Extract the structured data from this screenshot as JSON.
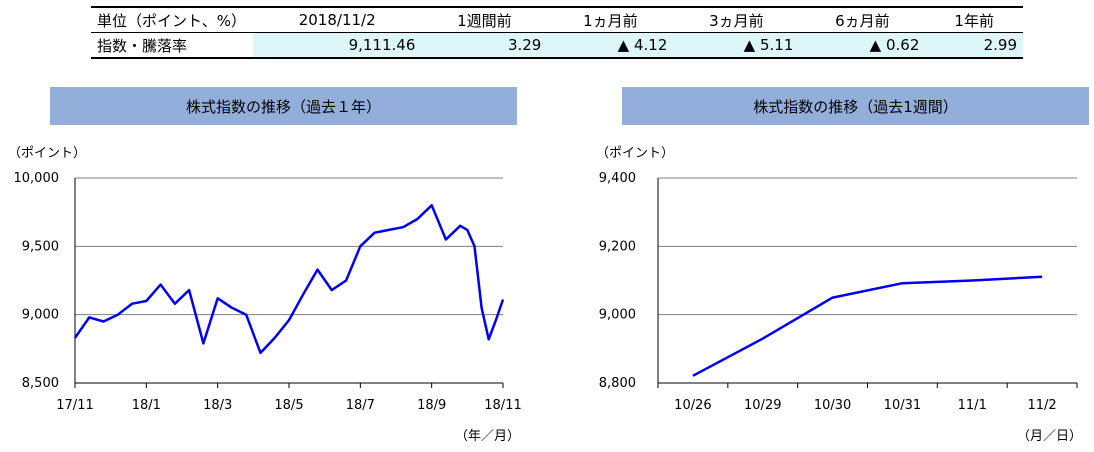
{
  "table": {
    "headers": [
      "単位（ポイント、%）",
      "2018/11/2",
      "1週間前",
      "1ヵ月前",
      "3ヵ月前",
      "6ヵ月前",
      "1年前"
    ],
    "row_label": "指数・騰落率",
    "values": [
      "9,111.46",
      "3.29",
      "▲ 4.12",
      "▲ 5.11",
      "▲ 0.62",
      "2.99"
    ]
  },
  "colors": {
    "title_bg": "#93aedb",
    "line": "#0000ee",
    "highlight": "#ddf6f9"
  },
  "chart_data": [
    {
      "type": "line",
      "title": "株式指数の推移（過去１年）",
      "ylabel": "（ポイント）",
      "xlabel": "（年／月）",
      "ylim": [
        8500,
        10000
      ],
      "yticks": [
        "10,000",
        "9,500",
        "9,000",
        "8,500"
      ],
      "ytick_values": [
        10000,
        9500,
        9000,
        8500
      ],
      "xticks": [
        "17/11",
        "18/1",
        "18/3",
        "18/5",
        "18/7",
        "18/9",
        "18/11"
      ],
      "grid": true,
      "series": [
        {
          "x": [
            0,
            0.2,
            0.4,
            0.6,
            0.8,
            1.0,
            1.2,
            1.4,
            1.6,
            1.8,
            2.0,
            2.2,
            2.4,
            2.6,
            2.8,
            3.0,
            3.2,
            3.4,
            3.6,
            3.8,
            4.0,
            4.2,
            4.4,
            4.6,
            4.8,
            5.0,
            5.2,
            5.4,
            5.5,
            5.6,
            5.7,
            5.8,
            5.9,
            6.0
          ],
          "values": [
            8830,
            8980,
            8950,
            9000,
            9080,
            9100,
            9220,
            9080,
            9180,
            8790,
            9120,
            9050,
            9000,
            8720,
            8830,
            8960,
            9150,
            9330,
            9180,
            9250,
            9500,
            9600,
            9620,
            9640,
            9700,
            9800,
            9550,
            9650,
            9620,
            9500,
            9050,
            8820,
            8960,
            9111
          ]
        }
      ]
    },
    {
      "type": "line",
      "title": "株式指数の推移（過去1週間）",
      "ylabel": "（ポイント）",
      "xlabel": "（月／日）",
      "ylim": [
        8800,
        9400
      ],
      "yticks": [
        "9,400",
        "9,200",
        "9,000",
        "8,800"
      ],
      "ytick_values": [
        9400,
        9200,
        9000,
        8800
      ],
      "categories": [
        "10/26",
        "10/29",
        "10/30",
        "10/31",
        "11/1",
        "11/2"
      ],
      "grid": true,
      "series": [
        {
          "values": [
            8821,
            8930,
            9050,
            9092,
            9100,
            9111
          ]
        }
      ]
    }
  ]
}
